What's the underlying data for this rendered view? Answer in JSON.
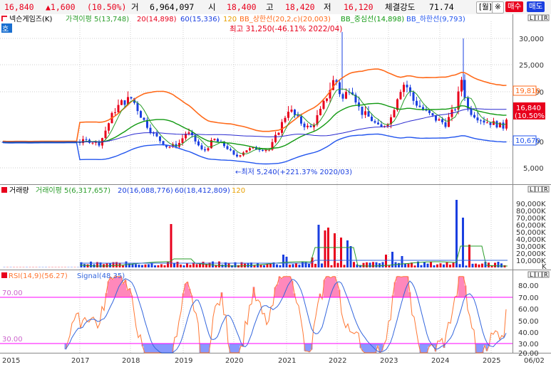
{
  "quote": {
    "price": "16,840",
    "change": "▲1,600",
    "change_pct": "(10.50%)",
    "vol_label": "거",
    "volume": "6,964,097",
    "open_label": "시",
    "open": "18,400",
    "high_label": "고",
    "high": "18,420",
    "low_label": "저",
    "low": "16,120",
    "strength_label": "체결강도",
    "strength": "71.74",
    "period_btn": "[월]",
    "gear_btn": "※",
    "buy_btn": "매수",
    "sell_btn": "매도"
  },
  "price_panel": {
    "legend": [
      "넥슨게임즈(K)",
      "가격이평 5(13,748)",
      "20(14,898)",
      "60(15,336)",
      "120",
      "BB_상한선(20,2,c)(20,003)",
      "BB_중심선(14,898)",
      "BB_하한선(9,793)"
    ],
    "ho_label": "호",
    "max_note": "최고 31,250(-46.11% 2022/04)",
    "min_note": "←최저 5,240(+221.37% 2020/03)",
    "axis_ticks": [
      "30,000",
      "25,000",
      "20,000",
      "10,000",
      "5,000"
    ],
    "bb_upper_tag": "19,810",
    "price_tag": "16,840",
    "price_tag_pct": "(10.50%)",
    "bb_lower_tag": "10,670"
  },
  "volume_panel": {
    "legend": [
      "거래량",
      "거래이평 5(6,317,657)",
      "20(16,088,776)",
      "60(18,412,809)",
      "120"
    ],
    "axis_ticks": [
      "90,000K",
      "80,000K",
      "70,000K",
      "60,000K",
      "50,000K",
      "40,000K",
      "30,000K",
      "20,000K",
      "10,000K",
      "K"
    ]
  },
  "rsi_panel": {
    "legend": [
      "RSI(14,9)(56.27)",
      "Signal(48.35)"
    ],
    "level_70": "70.00",
    "level_30": "30.00",
    "axis_ticks": [
      "80.00",
      "70.00",
      "60.00",
      "50.00",
      "40.00",
      "30.00",
      "20.00"
    ]
  },
  "x_axis": {
    "years": [
      "2015",
      "2017",
      "2018",
      "2019",
      "2020",
      "2021",
      "2022",
      "2023",
      "2024",
      "2025"
    ],
    "end_date": "06/02"
  },
  "panel_buttons": [
    "L",
    "I",
    "R"
  ],
  "colors": {
    "up": "#e8001c",
    "down": "#1a3fe0",
    "ma5": "#2a9d2a",
    "bb_upper": "#ff6a1a",
    "bb_mid": "#119911",
    "bb_lower": "#2255ee",
    "rsi": "#ff7733",
    "signal": "#3366dd",
    "level_line": "#ff00ff"
  }
}
